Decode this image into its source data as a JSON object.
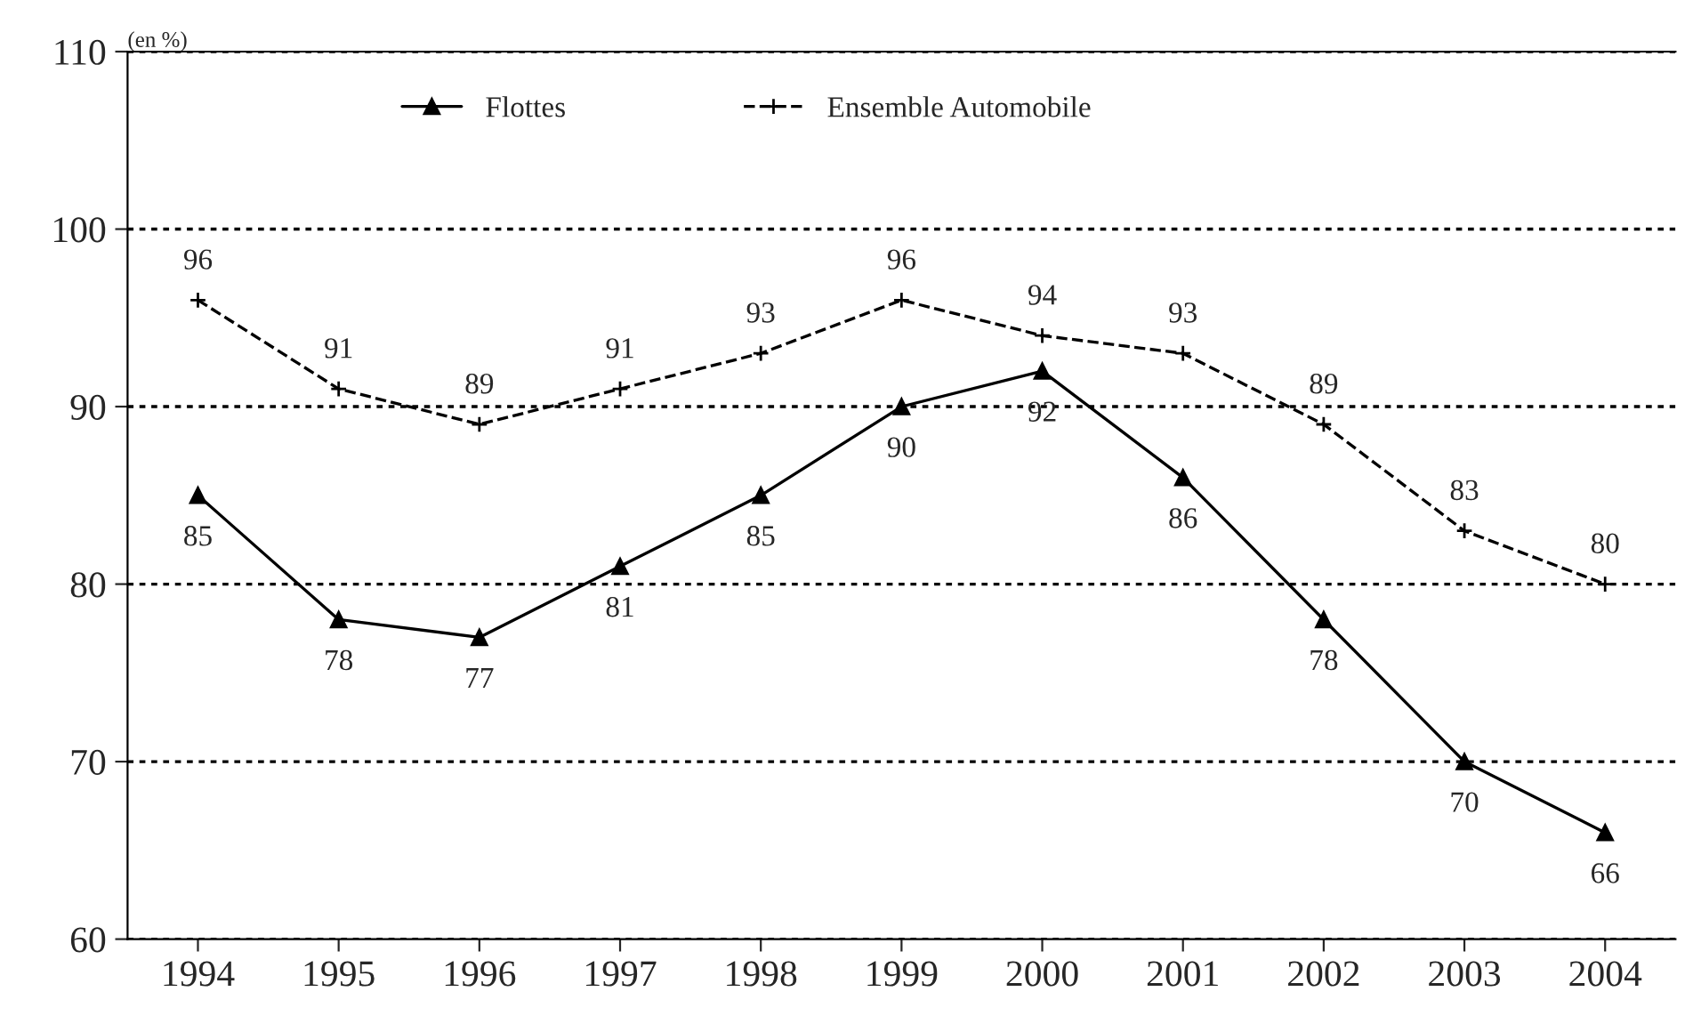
{
  "chart_data": {
    "type": "line",
    "ylabel": "(en %)",
    "categories": [
      "1994",
      "1995",
      "1996",
      "1997",
      "1998",
      "1999",
      "2000",
      "2001",
      "2002",
      "2003",
      "2004"
    ],
    "series": [
      {
        "name": "Flottes",
        "color": "#000000",
        "marker": "triangle",
        "line_style": "solid",
        "values": [
          85,
          78,
          77,
          81,
          85,
          90,
          92,
          86,
          78,
          70,
          66
        ]
      },
      {
        "name": "Ensemble Automobile",
        "color": "#000000",
        "marker": "cross",
        "line_style": "dashed",
        "values": [
          96,
          91,
          89,
          91,
          93,
          96,
          94,
          93,
          89,
          83,
          80
        ]
      }
    ],
    "ylim": [
      60,
      110
    ],
    "yticks": [
      60,
      70,
      80,
      90,
      100,
      110
    ],
    "grid": "y",
    "legend": "top",
    "data_labels": true
  }
}
